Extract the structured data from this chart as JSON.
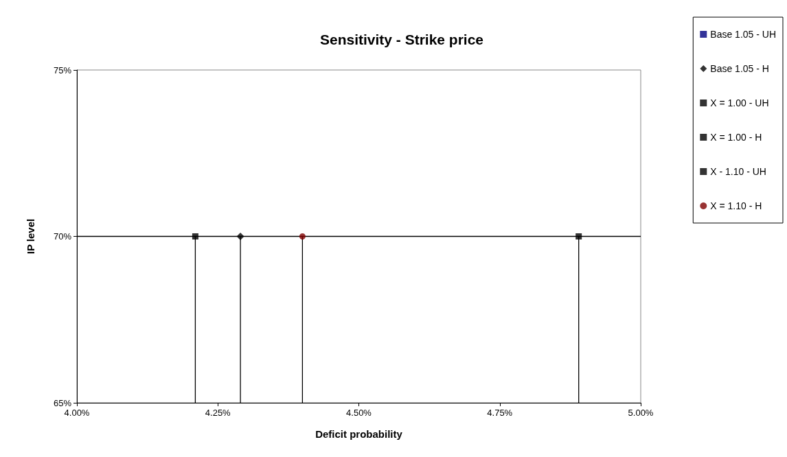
{
  "chart_data": {
    "type": "scatter",
    "title": "Sensitivity - Strike price",
    "xlabel": "Deficit probability",
    "ylabel": "IP level",
    "xlim": [
      4,
      5
    ],
    "xticks": [
      {
        "value": 4,
        "label": "4.00%"
      },
      {
        "value": 4.25,
        "label": "4.25%"
      },
      {
        "value": 4.5,
        "label": "4.50%"
      },
      {
        "value": 4.75,
        "label": "4.75%"
      },
      {
        "value": 5,
        "label": "5.00%"
      }
    ],
    "ylim": [
      65,
      75
    ],
    "yticks": [
      {
        "value": 65,
        "label": "65%"
      },
      {
        "value": 70,
        "label": "70%"
      },
      {
        "value": 75,
        "label": "75%"
      }
    ],
    "series": [
      {
        "name": "Base 1.05 - UH",
        "color": "#000080",
        "marker": "square",
        "x": [
          null
        ],
        "values": [
          null
        ]
      },
      {
        "name": "Base 1.05 - H",
        "color": "#000000",
        "marker": "diamond",
        "x": [
          4.29
        ],
        "values": [
          70
        ],
        "errors": [
          [
            65,
            70
          ]
        ]
      },
      {
        "name": "X = 1.00 - UH",
        "color": "#000000",
        "marker": "square",
        "x": [
          null
        ],
        "values": [
          null
        ]
      },
      {
        "name": "X = 1.00 - H",
        "color": "#000000",
        "marker": "square",
        "x": [
          4.21
        ],
        "values": [
          70
        ],
        "errors": [
          [
            65,
            70
          ]
        ]
      },
      {
        "name": "X - 1.10 - UH",
        "color": "#000000",
        "marker": "square",
        "x": [
          4.89
        ],
        "values": [
          70
        ],
        "errors": [
          [
            65,
            70
          ]
        ]
      },
      {
        "name": "X = 1.10 - H",
        "color": "#800000",
        "marker": "circle",
        "x": [
          4.4
        ],
        "values": [
          70
        ],
        "errors": [
          [
            65,
            70
          ]
        ]
      }
    ],
    "ref_lines": [
      {
        "axis": "y",
        "value": 70,
        "color": "#000000"
      }
    ],
    "grid": false,
    "legend": "right"
  }
}
